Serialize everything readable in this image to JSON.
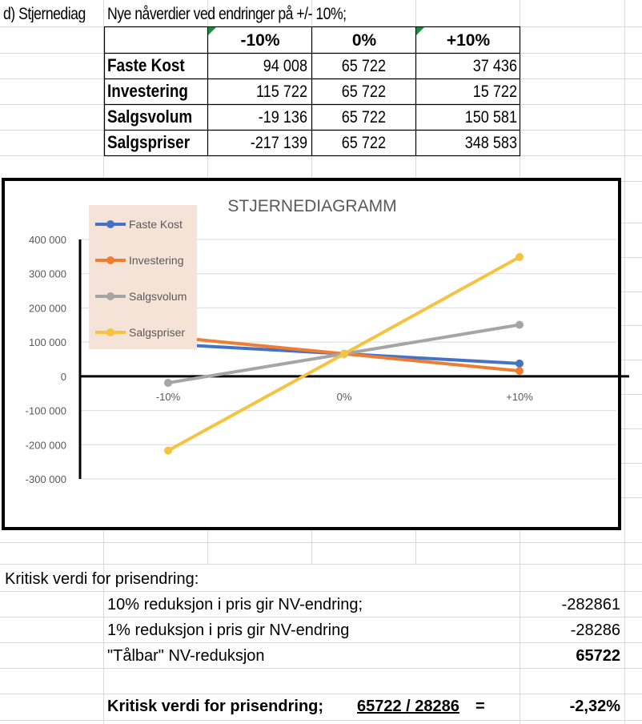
{
  "sheet": {
    "section_label": "d)  Stjernediag",
    "section_title": "Nye  nåverdier ved endringer på +/- 10%;",
    "table": {
      "columns": [
        "-10%",
        "0%",
        "+10%"
      ],
      "rows": [
        {
          "label": "Faste Kost",
          "values": [
            "94 008",
            "65 722",
            "37 436"
          ]
        },
        {
          "label": "Investering",
          "values": [
            "115 722",
            "65 722",
            "15 722"
          ]
        },
        {
          "label": "Salgsvolum",
          "values": [
            "-19 136",
            "65 722",
            "150 581"
          ]
        },
        {
          "label": "Salgspriser",
          "values": [
            "-217 139",
            "65 722",
            "348 583"
          ]
        }
      ]
    },
    "critical": {
      "heading": "Kritisk verdi for prisendring:",
      "rows": [
        {
          "label": "10% reduksjon i pris gir NV-endring;",
          "value": "-282861"
        },
        {
          "label": "1% reduksjon i pris gir NV-endring",
          "value": "-28286"
        },
        {
          "label": "\"Tålbar\" NV-reduksjon",
          "value": "65722"
        }
      ],
      "result_label": "Kritisk verdi for prisendring;",
      "result_formula": "65722 / 28286",
      "result_equals": "=",
      "result_value": "-2,32%"
    }
  },
  "chart_data": {
    "type": "line",
    "title": "STJERNEDIAGRAMM",
    "categories": [
      "-10%",
      "0%",
      "+10%"
    ],
    "ylim": [
      -300000,
      400000
    ],
    "yticks": [
      400000,
      300000,
      200000,
      100000,
      0,
      -100000,
      -200000,
      -300000
    ],
    "ytick_labels": [
      "400 000",
      "300 000",
      "200 000",
      "100 000",
      "0",
      "-100 000",
      "-200 000",
      "-300 000"
    ],
    "legend_position": "top-left",
    "series": [
      {
        "name": "Faste Kost",
        "color": "#4472c4",
        "values": [
          94008,
          65722,
          37436
        ]
      },
      {
        "name": "Investering",
        "color": "#ed7d31",
        "values": [
          115722,
          65722,
          15722
        ]
      },
      {
        "name": "Salgsvolum",
        "color": "#a5a5a5",
        "values": [
          -19136,
          65722,
          150581
        ]
      },
      {
        "name": "Salgspriser",
        "color": "#f5c242",
        "values": [
          -217139,
          65722,
          348583
        ]
      }
    ]
  }
}
